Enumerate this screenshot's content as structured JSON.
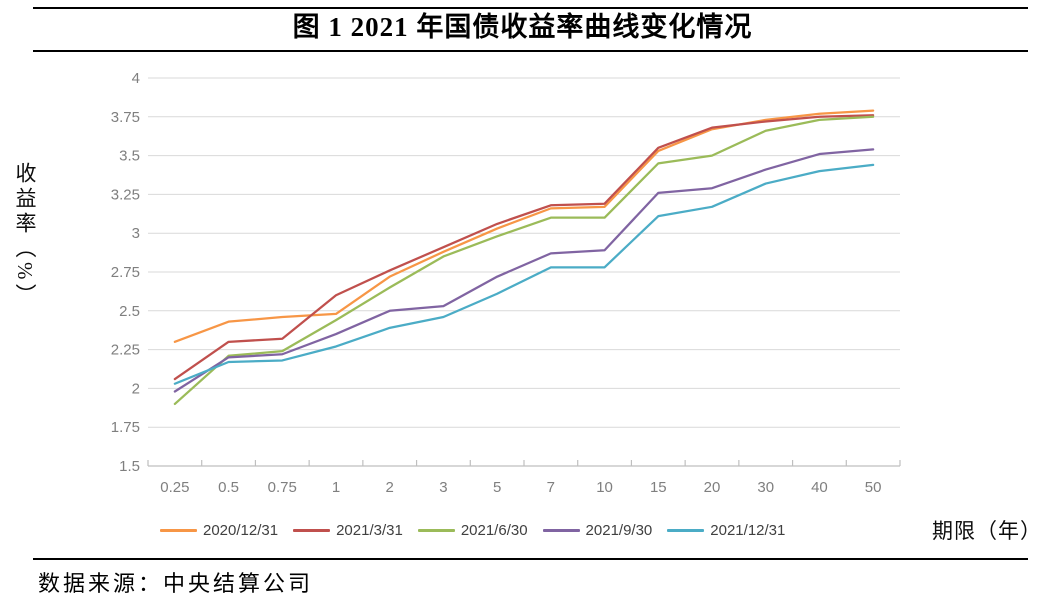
{
  "page": {
    "source": "数据来源：中央结算公司"
  },
  "chart_data": {
    "type": "line",
    "title": "图 1 2021 年国债收益率曲线变化情况",
    "xlabel": "期限（年）",
    "ylabel": "收益率（%）",
    "categories": [
      "0.25",
      "0.5",
      "0.75",
      "1",
      "2",
      "3",
      "5",
      "7",
      "10",
      "15",
      "20",
      "30",
      "40",
      "50"
    ],
    "ylim": [
      1.5,
      4
    ],
    "ytick_step": 0.25,
    "ytick_labels": [
      "4",
      "3.75",
      "3.5",
      "3.25",
      "3",
      "2.75",
      "2.5",
      "2.25",
      "2",
      "1.75",
      "1.5"
    ],
    "grid": true,
    "legend_position": "bottom",
    "axis_color": "#bfbfbf",
    "grid_color": "#d9d9d9",
    "tick_label_color": "#7f7f7f",
    "series": [
      {
        "name": "2020/12/31",
        "color": "#F79646",
        "values": [
          2.3,
          2.43,
          2.46,
          2.48,
          2.72,
          2.88,
          3.03,
          3.16,
          3.17,
          3.53,
          3.67,
          3.73,
          3.77,
          3.79
        ]
      },
      {
        "name": "2021/3/31",
        "color": "#C0504D",
        "values": [
          2.06,
          2.3,
          2.32,
          2.6,
          2.76,
          2.91,
          3.06,
          3.18,
          3.19,
          3.55,
          3.68,
          3.72,
          3.75,
          3.76
        ]
      },
      {
        "name": "2021/6/30",
        "color": "#9BBB59",
        "values": [
          1.9,
          2.21,
          2.24,
          2.44,
          2.65,
          2.85,
          2.98,
          3.1,
          3.1,
          3.45,
          3.5,
          3.66,
          3.73,
          3.75
        ]
      },
      {
        "name": "2021/9/30",
        "color": "#8064A2",
        "values": [
          1.98,
          2.2,
          2.22,
          2.35,
          2.5,
          2.53,
          2.72,
          2.87,
          2.89,
          3.26,
          3.29,
          3.41,
          3.51,
          3.54
        ]
      },
      {
        "name": "2021/12/31",
        "color": "#4BACC6",
        "values": [
          2.03,
          2.17,
          2.18,
          2.27,
          2.39,
          2.46,
          2.61,
          2.78,
          2.78,
          3.11,
          3.17,
          3.32,
          3.4,
          3.44
        ]
      }
    ]
  }
}
